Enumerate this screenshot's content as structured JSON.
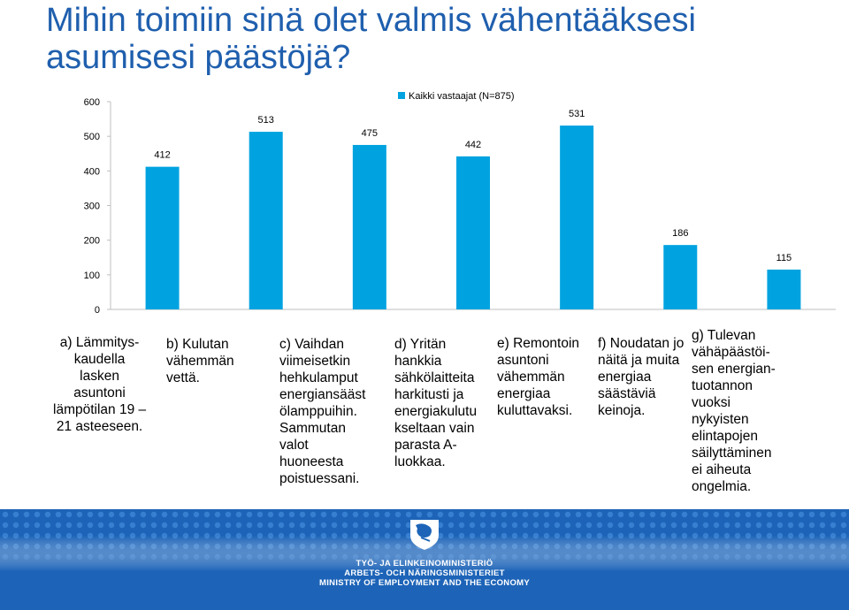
{
  "title": "Mihin toimiin sinä olet valmis vähentääksesi asumisesi päästöjä?",
  "chart_data": {
    "type": "bar",
    "categories": [
      "a) Lämmitys-\nkaudella\nlasken\nasuntoni\nlämpötilan 19 –\n21 asteeseen.",
      "b) Kulutan\nvähemmän\nvettä.",
      "c) Vaihdan\nviimeisetkin\nhehkulamput\nenergiansääst\nölamppuihin.\nSammutan\nvalot\nhuoneesta\npoistuessani.",
      "d) Yritän\nhankkia\nsähkölaitteita\nharkitusti ja\nenergiakulutu\nkseltaan vain\nparasta A-\nluokkaa.",
      "e) Remontoin\nasuntoni\nvähemmän\nenergiaa\nkuluttavaksi.",
      "f) Noudatan jo\nnäitä ja muita\nenergiaa\nsäästäviä\nkeinoja.",
      "g) Tulevan\nvähäpäästöi-\nsen energian-\ntuotannon\nvuoksi\nnykyisten\nelintapojen\nsäilyttäminen\nei aiheuta\nongelmia."
    ],
    "series": [
      {
        "name": "Kaikki vastaajat (N=875)",
        "values": [
          412,
          513,
          475,
          442,
          531,
          186,
          115
        ],
        "color": "#00a3e0"
      }
    ],
    "yticks": [
      0,
      100,
      200,
      300,
      400,
      500,
      600
    ],
    "ylim": [
      0,
      600
    ],
    "grid": false,
    "legend_position": "top-center"
  },
  "footer": {
    "line1": "TYÖ- JA ELINKEINOMINISTERIÖ",
    "line2": "ARBETS- OCH NÄRINGSMINISTERIET",
    "line3": "MINISTRY OF EMPLOYMENT AND THE ECONOMY",
    "background_color": "#1d64b8"
  }
}
